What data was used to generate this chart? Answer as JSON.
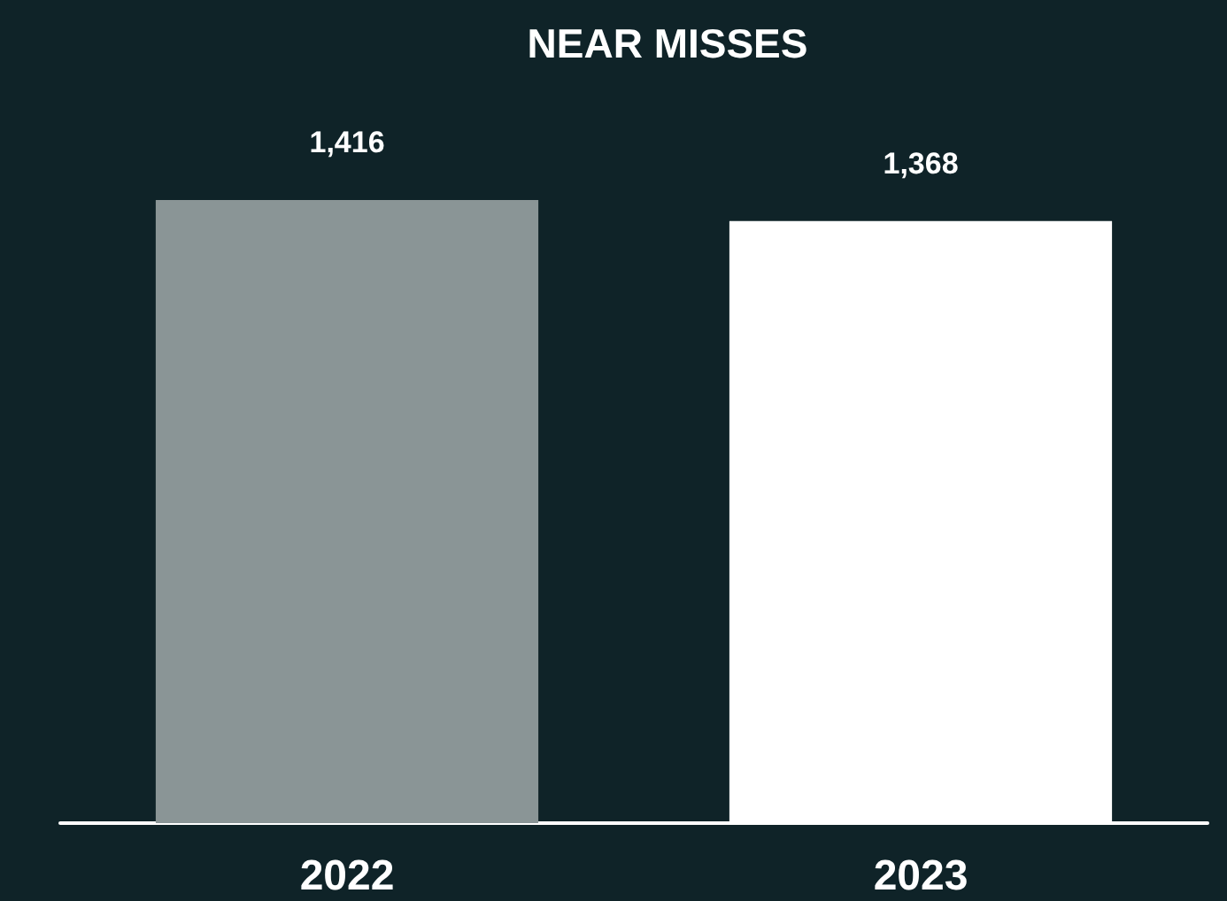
{
  "chart_data": {
    "type": "bar",
    "title": "NEAR MISSES",
    "categories": [
      "2022",
      "2023"
    ],
    "values": [
      1416,
      1368
    ],
    "colors": [
      "#8a9596",
      "#ffffff"
    ],
    "value_labels": [
      "1,416",
      "1,368"
    ],
    "tick_labels": "x"
  }
}
